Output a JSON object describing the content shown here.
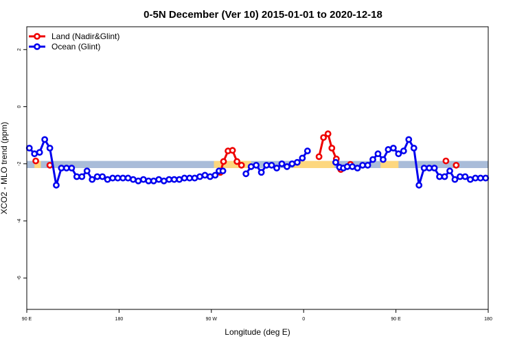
{
  "chart_data": {
    "type": "line",
    "title": "0-5N December (Ver 10)   2015-01-01 to 2020-12-18",
    "xlabel": "Longitude (deg E)",
    "ylabel": "XCO2 - MLO trend (ppm)",
    "xlim": [
      90,
      450
    ],
    "ylim": [
      -7.1,
      2.8
    ],
    "x_ticks": [
      {
        "value": 90,
        "label": "90 E"
      },
      {
        "value": 162,
        "label": "180"
      },
      {
        "value": 234,
        "label": "90 W"
      },
      {
        "value": 306,
        "label": "0"
      },
      {
        "value": 378,
        "label": "90 E"
      },
      {
        "value": 450,
        "label": "180"
      }
    ],
    "y_ticks": [
      {
        "value": 2,
        "label": "2"
      },
      {
        "value": 0,
        "label": "0"
      },
      {
        "value": -2,
        "label": "-2"
      },
      {
        "value": -4,
        "label": "-4"
      },
      {
        "value": -6,
        "label": "-6"
      }
    ],
    "legend_position": "top-left",
    "reference_band": {
      "y_low": -2.15,
      "y_high": -1.9,
      "color": "#a9bcd9",
      "highlight_color": "#fdd77e"
    },
    "band_highlights": [
      [
        96,
        101
      ],
      [
        236,
        265
      ],
      [
        298,
        330
      ],
      [
        366,
        380
      ]
    ],
    "series": [
      {
        "name": "Land (Nadir&Glint)",
        "color": "#ee0000",
        "segments": [
          [
            [
              97,
              -1.9
            ]
          ],
          [
            [
              108,
              -2.05
            ]
          ],
          [
            [
              241,
              -2.3
            ],
            [
              243.5,
              -1.92
            ],
            [
              247,
              -1.55
            ],
            [
              250.5,
              -1.53
            ],
            [
              254,
              -1.92
            ],
            [
              257.5,
              -2.05
            ]
          ],
          [
            [
              318,
              -1.75
            ],
            [
              321.5,
              -1.08
            ],
            [
              325,
              -0.95
            ],
            [
              328,
              -1.45
            ],
            [
              331.5,
              -1.83
            ],
            [
              335,
              -2.2
            ]
          ],
          [
            [
              342.5,
              -2.02
            ]
          ],
          [
            [
              417,
              -1.9
            ]
          ],
          [
            [
              425,
              -2.05
            ]
          ]
        ]
      },
      {
        "name": "Ocean (Glint)",
        "color": "#0000ee",
        "segments": [
          [
            [
              92,
              -1.45
            ],
            [
              96,
              -1.65
            ],
            [
              100,
              -1.6
            ],
            [
              104,
              -1.15
            ],
            [
              108,
              -1.45
            ],
            [
              113,
              -2.75
            ],
            [
              117,
              -2.15
            ],
            [
              121,
              -2.15
            ],
            [
              125,
              -2.15
            ],
            [
              129,
              -2.45
            ],
            [
              133,
              -2.45
            ],
            [
              137,
              -2.25
            ],
            [
              141,
              -2.55
            ],
            [
              145,
              -2.45
            ],
            [
              149,
              -2.45
            ],
            [
              153,
              -2.55
            ],
            [
              157,
              -2.5
            ],
            [
              161,
              -2.5
            ],
            [
              165,
              -2.5
            ],
            [
              169,
              -2.5
            ],
            [
              173,
              -2.55
            ],
            [
              177,
              -2.6
            ],
            [
              181,
              -2.55
            ],
            [
              185,
              -2.6
            ],
            [
              189,
              -2.6
            ],
            [
              193,
              -2.55
            ],
            [
              197,
              -2.6
            ],
            [
              201,
              -2.55
            ],
            [
              205,
              -2.55
            ],
            [
              209,
              -2.55
            ],
            [
              213,
              -2.5
            ],
            [
              217,
              -2.5
            ],
            [
              221,
              -2.5
            ],
            [
              225,
              -2.45
            ],
            [
              229,
              -2.4
            ],
            [
              233,
              -2.45
            ],
            [
              237,
              -2.4
            ],
            [
              240,
              -2.25
            ],
            [
              243,
              -2.25
            ]
          ],
          [
            [
              261,
              -2.35
            ],
            [
              265,
              -2.1
            ],
            [
              269,
              -2.05
            ],
            [
              273,
              -2.3
            ],
            [
              277,
              -2.05
            ],
            [
              281,
              -2.05
            ],
            [
              285,
              -2.15
            ],
            [
              289,
              -2.0
            ],
            [
              293,
              -2.1
            ],
            [
              297,
              -2.0
            ],
            [
              301,
              -1.95
            ],
            [
              305,
              -1.8
            ],
            [
              309,
              -1.55
            ]
          ],
          [
            [
              331,
              -1.95
            ],
            [
              334,
              -2.12
            ],
            [
              337,
              -2.15
            ],
            [
              340,
              -2.1
            ],
            [
              344,
              -2.1
            ],
            [
              348,
              -2.15
            ],
            [
              352,
              -2.05
            ],
            [
              356,
              -2.05
            ],
            [
              360,
              -1.85
            ],
            [
              364,
              -1.65
            ],
            [
              368,
              -1.85
            ],
            [
              372,
              -1.5
            ],
            [
              376,
              -1.45
            ],
            [
              380,
              -1.65
            ],
            [
              384,
              -1.55
            ],
            [
              388,
              -1.15
            ],
            [
              392,
              -1.45
            ],
            [
              396,
              -2.75
            ],
            [
              400,
              -2.15
            ],
            [
              404,
              -2.15
            ],
            [
              408,
              -2.15
            ],
            [
              412,
              -2.45
            ],
            [
              416,
              -2.45
            ],
            [
              420,
              -2.25
            ],
            [
              424,
              -2.55
            ],
            [
              428,
              -2.45
            ],
            [
              432,
              -2.45
            ],
            [
              436,
              -2.55
            ],
            [
              440,
              -2.5
            ],
            [
              444,
              -2.5
            ],
            [
              448,
              -2.5
            ]
          ]
        ]
      }
    ]
  }
}
